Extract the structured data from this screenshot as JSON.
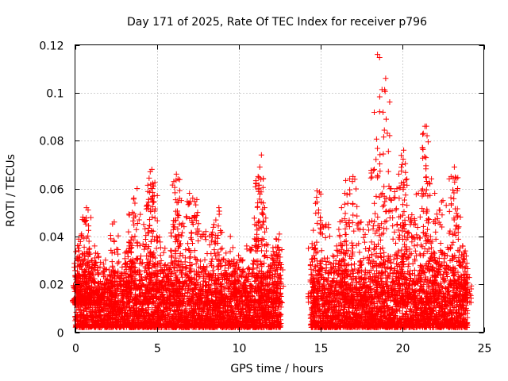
{
  "chart_data": {
    "type": "scatter",
    "title": "Day 171 of 2025, Rate Of TEC Index for receiver p796",
    "xlabel": "GPS time / hours",
    "ylabel": "ROTI / TECUs",
    "xlim": [
      0,
      25
    ],
    "ylim": [
      0,
      0.12
    ],
    "xticks": [
      0,
      5,
      10,
      15,
      20,
      25
    ],
    "yticks": [
      0,
      0.02,
      0.04,
      0.06,
      0.08,
      0.1,
      0.12
    ],
    "ytick_labels": [
      "0",
      "0.02",
      "0.04",
      "0.06",
      "0.08",
      "0.1",
      "0.12"
    ],
    "grid": true,
    "marker": "+",
    "color": "#ff0000",
    "data_gap_hours": [
      12.6,
      14.4
    ],
    "series": [
      {
        "name": "ROTI",
        "points": [
          [
            0.1,
            0.021
          ],
          [
            0.2,
            0.035
          ],
          [
            0.3,
            0.028
          ],
          [
            0.4,
            0.041
          ],
          [
            0.5,
            0.024
          ],
          [
            0.7,
            0.052
          ],
          [
            0.8,
            0.051
          ],
          [
            1.0,
            0.03
          ],
          [
            1.2,
            0.036
          ],
          [
            1.5,
            0.018
          ],
          [
            2.0,
            0.022
          ],
          [
            2.3,
            0.027
          ],
          [
            2.4,
            0.046
          ],
          [
            3.0,
            0.025
          ],
          [
            3.3,
            0.035
          ],
          [
            3.5,
            0.05
          ],
          [
            3.6,
            0.056
          ],
          [
            3.8,
            0.06
          ],
          [
            4.2,
            0.045
          ],
          [
            4.5,
            0.053
          ],
          [
            4.6,
            0.067
          ],
          [
            4.7,
            0.068
          ],
          [
            4.8,
            0.061
          ],
          [
            5.0,
            0.04
          ],
          [
            5.5,
            0.035
          ],
          [
            6.0,
            0.045
          ],
          [
            6.2,
            0.066
          ],
          [
            6.3,
            0.064
          ],
          [
            6.5,
            0.055
          ],
          [
            7.0,
            0.058
          ],
          [
            7.2,
            0.056
          ],
          [
            7.5,
            0.05
          ],
          [
            8.0,
            0.042
          ],
          [
            8.5,
            0.045
          ],
          [
            8.8,
            0.052
          ],
          [
            9.0,
            0.035
          ],
          [
            9.5,
            0.04
          ],
          [
            10.0,
            0.032
          ],
          [
            10.5,
            0.036
          ],
          [
            11.0,
            0.045
          ],
          [
            11.2,
            0.065
          ],
          [
            11.3,
            0.069
          ],
          [
            11.4,
            0.074
          ],
          [
            11.6,
            0.052
          ],
          [
            12.0,
            0.032
          ],
          [
            12.3,
            0.039
          ],
          [
            12.5,
            0.041
          ],
          [
            14.5,
            0.037
          ],
          [
            14.8,
            0.059
          ],
          [
            15.0,
            0.048
          ],
          [
            15.5,
            0.045
          ],
          [
            16.0,
            0.036
          ],
          [
            16.3,
            0.052
          ],
          [
            16.5,
            0.058
          ],
          [
            16.8,
            0.064
          ],
          [
            17.0,
            0.065
          ],
          [
            17.5,
            0.046
          ],
          [
            18.0,
            0.046
          ],
          [
            18.3,
            0.068
          ],
          [
            18.5,
            0.116
          ],
          [
            18.8,
            0.058
          ],
          [
            19.0,
            0.106
          ],
          [
            19.2,
            0.061
          ],
          [
            19.5,
            0.056
          ],
          [
            19.8,
            0.066
          ],
          [
            20.0,
            0.07
          ],
          [
            20.1,
            0.076
          ],
          [
            20.3,
            0.053
          ],
          [
            20.6,
            0.049
          ],
          [
            21.0,
            0.058
          ],
          [
            21.3,
            0.083
          ],
          [
            21.4,
            0.086
          ],
          [
            21.5,
            0.063
          ],
          [
            21.8,
            0.064
          ],
          [
            22.0,
            0.058
          ],
          [
            22.5,
            0.055
          ],
          [
            23.0,
            0.065
          ],
          [
            23.2,
            0.069
          ],
          [
            23.4,
            0.06
          ],
          [
            23.7,
            0.036
          ],
          [
            24.0,
            0.023
          ]
        ],
        "dense_bands": [
          {
            "from_hour": 0.0,
            "to_hour": 12.6,
            "min_value": 0.002,
            "typical_max_value": 0.028
          },
          {
            "from_hour": 14.4,
            "to_hour": 24.0,
            "min_value": 0.002,
            "typical_max_value": 0.03
          }
        ]
      }
    ]
  }
}
